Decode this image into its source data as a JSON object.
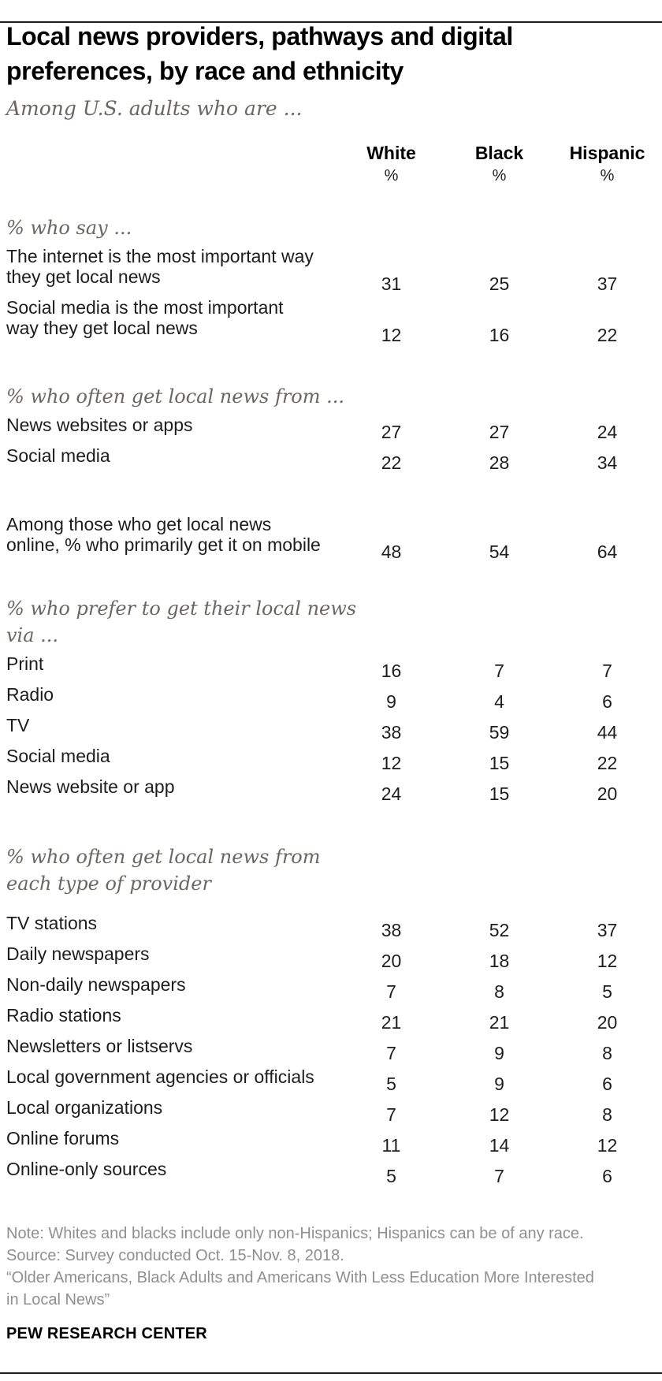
{
  "page": {
    "title": "Local news providers, pathways and digital\npreferences, by race and ethnicity",
    "subtitle": "Among U.S. adults who are ...",
    "brand": "PEW RESEARCH CENTER",
    "notes": [
      "Note: Whites and blacks include only non-Hispanics; Hispanics can be of any race.",
      "Source: Survey conducted Oct. 15-Nov. 8, 2018.",
      "“Older Americans, Black Adults and Americans With Less Education More Interested\nin Local News”"
    ]
  },
  "chart_data": {
    "type": "table",
    "title": "Local news providers, pathways and digital preferences, by race and ethnicity",
    "subtitle": "Among U.S. adults who are ...",
    "columns": [
      "White",
      "Black",
      "Hispanic"
    ],
    "units": [
      "%",
      "%",
      "%"
    ],
    "sections": [
      {
        "header": "% who say ...",
        "rows": [
          {
            "label": "The internet is the most important way\nthey get local news",
            "values": [
              31,
              25,
              37
            ]
          },
          {
            "label": "Social media is the most important\nway they get local news",
            "values": [
              12,
              16,
              22
            ]
          }
        ]
      },
      {
        "header": "% who often get local news from ...",
        "rows": [
          {
            "label": "News websites or apps",
            "values": [
              27,
              27,
              24
            ]
          },
          {
            "label": "Social media",
            "values": [
              22,
              28,
              34
            ]
          }
        ]
      },
      {
        "header": null,
        "rows": [
          {
            "label": "Among those who get local news\nonline, % who primarily get it on mobile",
            "values": [
              48,
              54,
              64
            ]
          }
        ]
      },
      {
        "header": "% who prefer to get their local news\nvia ...",
        "rows": [
          {
            "label": "Print",
            "values": [
              16,
              7,
              7
            ]
          },
          {
            "label": "Radio",
            "values": [
              9,
              4,
              6
            ]
          },
          {
            "label": "TV",
            "values": [
              38,
              59,
              44
            ]
          },
          {
            "label": "Social media",
            "values": [
              12,
              15,
              22
            ]
          },
          {
            "label": "News website or app",
            "values": [
              24,
              15,
              20
            ]
          }
        ]
      },
      {
        "header": "% who often get local news from\neach type of provider",
        "rows": [
          {
            "label": "TV stations",
            "values": [
              38,
              52,
              37
            ]
          },
          {
            "label": "Daily newspapers",
            "values": [
              20,
              18,
              12
            ]
          },
          {
            "label": "Non-daily newspapers",
            "values": [
              7,
              8,
              5
            ]
          },
          {
            "label": "Radio stations",
            "values": [
              21,
              21,
              20
            ]
          },
          {
            "label": "Newsletters or listservs",
            "values": [
              7,
              9,
              8
            ]
          },
          {
            "label": "Local government agencies or officials",
            "values": [
              5,
              9,
              6
            ]
          },
          {
            "label": "Local organizations",
            "values": [
              7,
              12,
              8
            ]
          },
          {
            "label": "Online forums",
            "values": [
              11,
              14,
              12
            ]
          },
          {
            "label": "Online-only sources",
            "values": [
              5,
              7,
              6
            ]
          }
        ]
      }
    ]
  }
}
